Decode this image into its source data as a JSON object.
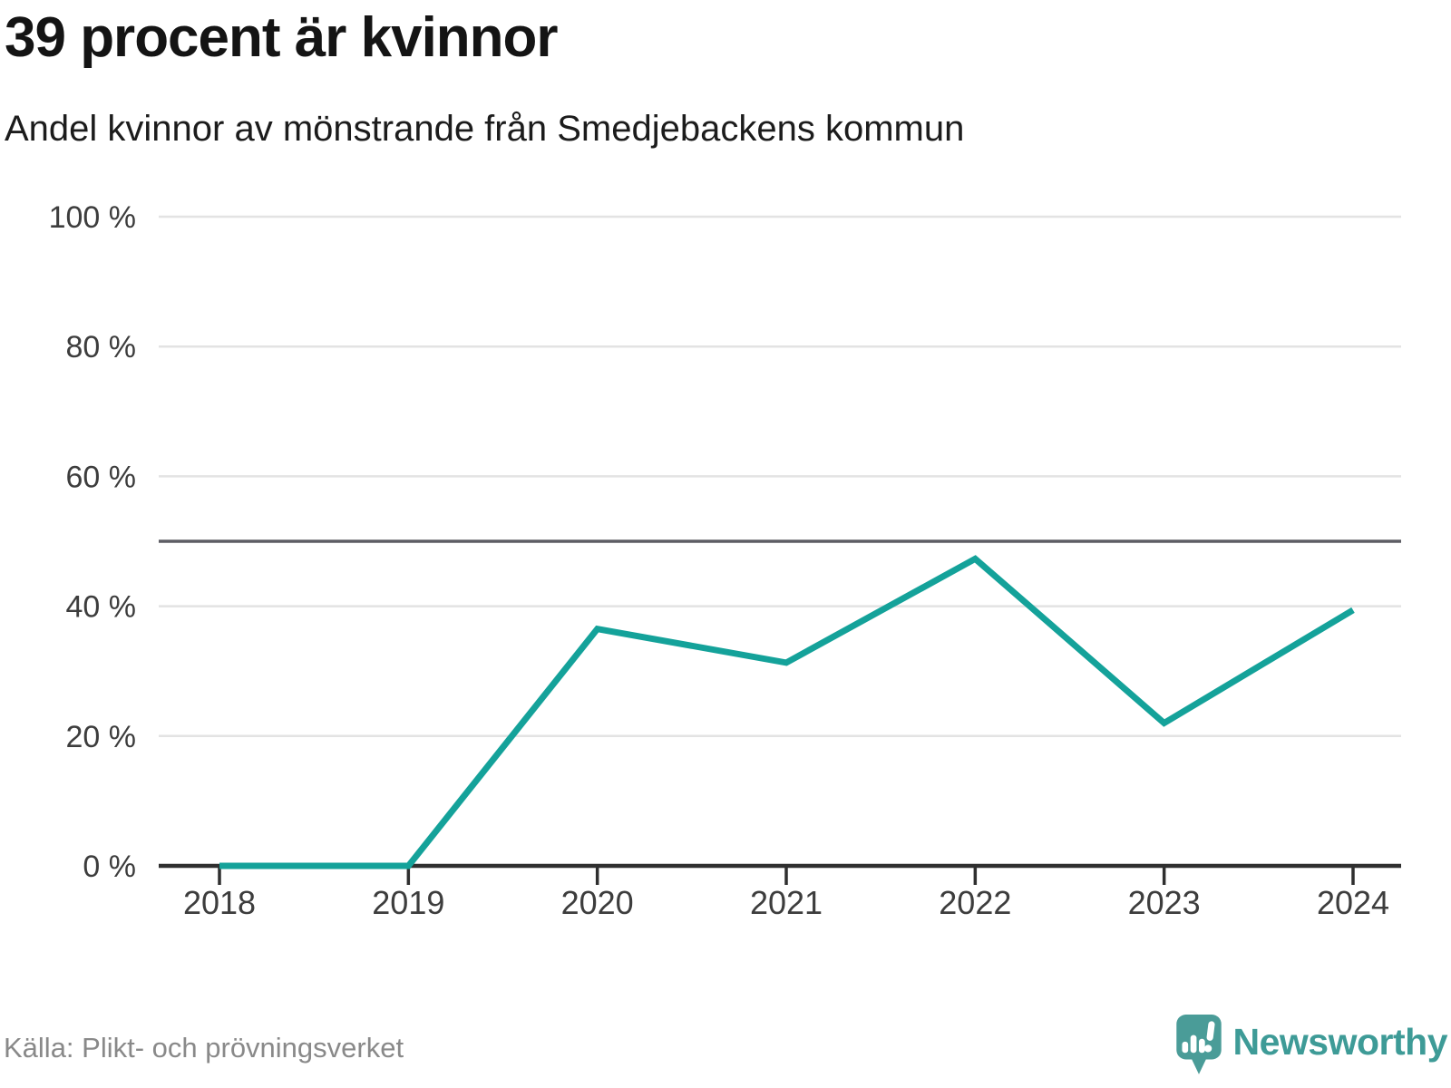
{
  "header": {
    "title": "39 procent är kvinnor",
    "subtitle": "Andel kvinnor av mönstrande från Smedjebackens kommun"
  },
  "chart_data": {
    "type": "line",
    "title": "39 procent är kvinnor",
    "subtitle": "Andel kvinnor av mönstrande från Smedjebackens kommun",
    "series_name": "Andel kvinnor av mönstrande",
    "x": [
      2018,
      2019,
      2020,
      2021,
      2022,
      2023,
      2024
    ],
    "x_labels": [
      "2018",
      "2019",
      "2020",
      "2021",
      "2022",
      "2023",
      "2024"
    ],
    "values": [
      0,
      0,
      36.5,
      31.3,
      47.3,
      22,
      39.4
    ],
    "unit": "%",
    "ylim": [
      0,
      100
    ],
    "ytick_values": [
      0,
      20,
      40,
      60,
      80,
      100
    ],
    "ytick_labels": [
      "0 %",
      "20 %",
      "40 %",
      "60 %",
      "80 %",
      "100 %"
    ],
    "reference_line_value": 50,
    "grid": "horizontal",
    "legend": "none",
    "line_color": "#14a29a",
    "reference_line_color": "#5d5d64",
    "axis_color": "#2f2f2f",
    "gridline_color": "#e3e3e3",
    "tick_label_color": "#3d3d3d"
  },
  "footer": {
    "source": "Källa: Plikt- och prövningsverket",
    "brand_name": "Newsworthy",
    "brand_color": "#3e9b97",
    "brand_icon": "speech-bubble-bar-chart-exclamation"
  }
}
